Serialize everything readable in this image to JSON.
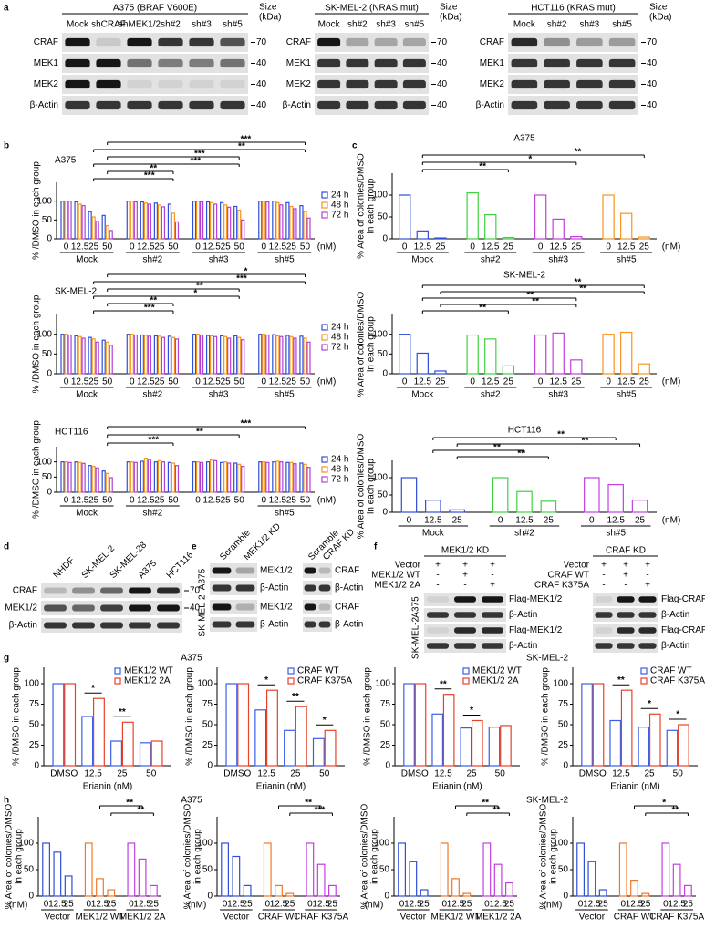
{
  "panel_labels": [
    "a",
    "b",
    "c",
    "d",
    "e",
    "f",
    "g",
    "h"
  ],
  "blots": {
    "size_label": [
      "Size",
      "(kDa)"
    ],
    "a": [
      {
        "title": "A375 (BRAF V600E)",
        "lanes": [
          "Mock",
          "shCRAF",
          "shMEK1/2",
          "sh#2",
          "sh#3",
          "sh#5"
        ],
        "rows": [
          "CRAF",
          "MEK1",
          "MEK2",
          "β-Actin"
        ],
        "sizes": [
          "70",
          "40",
          "40",
          "40"
        ]
      },
      {
        "title": "SK-MEL-2 (NRAS mut)",
        "lanes": [
          "Mock",
          "sh#2",
          "sh#3",
          "sh#5"
        ],
        "rows": [
          "CRAF",
          "MEK1",
          "MEK2",
          "β-Actin"
        ],
        "sizes": [
          "70",
          "40",
          "40",
          "40"
        ]
      },
      {
        "title": "HCT116 (KRAS mut)",
        "lanes": [
          "Mock",
          "sh#2",
          "sh#3",
          "sh#5"
        ],
        "rows": [
          "CRAF",
          "MEK1",
          "MEK2",
          "β-Actin"
        ],
        "sizes": [
          "70",
          "40",
          "40",
          "40"
        ]
      }
    ],
    "d": {
      "lanes": [
        "NHDF",
        "SK-MEL-2",
        "SK-MEL-28",
        "A375",
        "HCT116"
      ],
      "rows": [
        "CRAF",
        "MEK1/2",
        "β-Actin"
      ],
      "sizes": [
        "70",
        "40"
      ]
    },
    "e": {
      "cell_lines": [
        "A375",
        "SK-MEL-2"
      ],
      "blots": [
        {
          "lanes": [
            "Scramble",
            "MEK1/2 KD"
          ],
          "rows": [
            "MEK1/2",
            "β-Actin",
            "MEK1/2",
            "β-Actin"
          ]
        },
        {
          "lanes": [
            "Scramble",
            "CRAF KD"
          ],
          "rows": [
            "CRAF",
            "β-Actin",
            "CRAF",
            "β-Actin"
          ]
        }
      ]
    },
    "f": {
      "cell_lines": [
        "A375",
        "SK-MEL-2"
      ],
      "blots": [
        {
          "title": "MEK1/2 KD",
          "conditions": [
            [
              "Vector",
              "+",
              "+",
              "+"
            ],
            [
              "MEK1/2 WT",
              "-",
              "+",
              "-"
            ],
            [
              "MEK1/2 2A",
              "-",
              "-",
              "+"
            ]
          ],
          "rows": [
            "Flag-MEK1/2",
            "β-Actin",
            "Flag-MEK1/2",
            "β-Actin"
          ]
        },
        {
          "title": "CRAF KD",
          "conditions": [
            [
              "Vector",
              "+",
              "+",
              "+"
            ],
            [
              "CRAF WT",
              "-",
              "+",
              "-"
            ],
            [
              "CRAF K375A",
              "-",
              "-",
              "+"
            ]
          ],
          "rows": [
            "Flag-CRAF",
            "β-Actin",
            "Flag-CRAF",
            "β-Actin"
          ]
        }
      ]
    }
  },
  "chart_data": [
    {
      "type": "bar",
      "title": "A375",
      "ylabel": [
        "% /DMSO in each group"
      ],
      "ylim": [
        0,
        150
      ],
      "yticks": [
        0,
        50,
        100
      ],
      "legend": "right",
      "categories": [
        "0",
        "12.5",
        "25",
        "50",
        "0",
        "12.5",
        "25",
        "50",
        "0",
        "12.5",
        "25",
        "50",
        "0",
        "12.5",
        "25",
        "50"
      ],
      "groups": [
        "Mock",
        "sh#2",
        "sh#3",
        "sh#5"
      ],
      "unit_label": "(nM)",
      "series": [
        {
          "name": "24 h",
          "color": "#2f4fd8",
          "values": [
            100,
            98,
            72,
            62,
            100,
            98,
            95,
            92,
            100,
            98,
            96,
            86,
            100,
            100,
            96,
            88
          ]
        },
        {
          "name": "48 h",
          "color": "#f7941d",
          "values": [
            100,
            92,
            58,
            35,
            100,
            95,
            90,
            68,
            100,
            96,
            90,
            76,
            100,
            96,
            86,
            72
          ]
        },
        {
          "name": "72 h",
          "color": "#b43fd6",
          "values": [
            100,
            88,
            46,
            22,
            98,
            92,
            85,
            45,
            98,
            92,
            84,
            50,
            98,
            90,
            80,
            55
          ]
        }
      ],
      "significance": [
        "***",
        "**",
        "***",
        "***",
        "**",
        "***"
      ]
    },
    {
      "type": "bar",
      "title": "SK-MEL-2",
      "ylabel": [
        "% /DMSO in each group"
      ],
      "ylim": [
        0,
        150
      ],
      "yticks": [
        0,
        50,
        100
      ],
      "legend": "right",
      "categories": [
        "0",
        "12.5",
        "25",
        "50",
        "0",
        "12.5",
        "25",
        "50",
        "0",
        "12.5",
        "25",
        "50",
        "0",
        "12.5",
        "25",
        "50"
      ],
      "groups": [
        "Mock",
        "sh#2",
        "sh#3",
        "sh#5"
      ],
      "unit_label": "(nM)",
      "series": [
        {
          "name": "24 h",
          "color": "#2f4fd8",
          "values": [
            100,
            96,
            92,
            85,
            100,
            98,
            96,
            95,
            100,
            97,
            96,
            96,
            100,
            99,
            97,
            95
          ]
        },
        {
          "name": "48 h",
          "color": "#f7941d",
          "values": [
            100,
            94,
            88,
            80,
            100,
            97,
            95,
            92,
            100,
            96,
            94,
            92,
            100,
            96,
            94,
            90
          ]
        },
        {
          "name": "72 h",
          "color": "#b43fd6",
          "values": [
            98,
            90,
            80,
            72,
            98,
            95,
            92,
            88,
            98,
            94,
            90,
            86,
            98,
            94,
            90,
            80
          ]
        }
      ],
      "significance": [
        "*",
        "***",
        "**",
        "*",
        "**",
        "***"
      ]
    },
    {
      "type": "bar",
      "title": "HCT116",
      "ylabel": [
        "% /DMSO in each group"
      ],
      "ylim": [
        0,
        150
      ],
      "yticks": [
        0,
        50,
        100
      ],
      "legend": "right",
      "categories": [
        "0",
        "12.5",
        "25",
        "50",
        "0",
        "12.5",
        "25",
        "50",
        "0",
        "12.5",
        "25",
        "50",
        "0",
        "12.5",
        "25",
        "50"
      ],
      "groups": [
        "Mock",
        "sh#2",
        null,
        "sh#5"
      ],
      "unit_label": "(nM)",
      "series": [
        {
          "name": "24 h",
          "color": "#2f4fd8",
          "values": [
            100,
            100,
            88,
            70,
            100,
            102,
            100,
            98,
            100,
            100,
            98,
            96,
            100,
            100,
            98,
            96
          ]
        },
        {
          "name": "48 h",
          "color": "#f7941d",
          "values": [
            100,
            98,
            85,
            62,
            100,
            112,
            104,
            96,
            100,
            106,
            100,
            92,
            100,
            102,
            98,
            92
          ]
        },
        {
          "name": "72 h",
          "color": "#b43fd6",
          "values": [
            98,
            95,
            80,
            48,
            98,
            108,
            100,
            88,
            98,
            104,
            96,
            85,
            98,
            100,
            94,
            82
          ]
        }
      ],
      "significance": [
        "***",
        "**",
        "***"
      ]
    },
    {
      "type": "bar",
      "title": "A375",
      "ylabel": [
        "% Area of colonies/DMSO",
        "in each group"
      ],
      "ylim": [
        0,
        150
      ],
      "yticks": [
        0,
        50,
        100
      ],
      "categories": [
        "0",
        "12.5",
        "25",
        "0",
        "12.5",
        "25",
        "0",
        "12.5",
        "25",
        "0",
        "12.5",
        "25"
      ],
      "groups": [
        "Mock",
        "sh#2",
        "sh#3",
        "sh#5"
      ],
      "unit_label": "(nM)",
      "group_colors": [
        "#2f4fd8",
        "#3fd13f",
        "#c23fe0",
        "#f7941d"
      ],
      "values": [
        100,
        18,
        2,
        105,
        55,
        3,
        100,
        45,
        5,
        100,
        58,
        4
      ],
      "significance": [
        "**",
        "*",
        "**"
      ]
    },
    {
      "type": "bar",
      "title": "SK-MEL-2",
      "ylabel": [
        "% Area of colonies/DMSO",
        "in each group"
      ],
      "ylim": [
        0,
        150
      ],
      "yticks": [
        0,
        50,
        100
      ],
      "categories": [
        "0",
        "12.5",
        "25",
        "0",
        "12.5",
        "25",
        "0",
        "12.5",
        "25",
        "0",
        "12.5",
        "25"
      ],
      "groups": [
        "Mock",
        "sh#2",
        "sh#3",
        "sh#5"
      ],
      "unit_label": "(nM)",
      "group_colors": [
        "#2f4fd8",
        "#3fd13f",
        "#c23fe0",
        "#f7941d"
      ],
      "values": [
        100,
        52,
        7,
        98,
        88,
        20,
        98,
        103,
        35,
        100,
        105,
        25
      ],
      "significance": [
        "**",
        "**",
        "**",
        "**",
        "**"
      ]
    },
    {
      "type": "bar",
      "title": "HCT116",
      "ylabel": [
        "% Area of colonies/DMSO",
        "in each group"
      ],
      "ylim": [
        0,
        150
      ],
      "yticks": [
        0,
        50,
        100
      ],
      "categories": [
        "0",
        "12.5",
        "25",
        "0",
        "12.5",
        "25",
        "0",
        "12.5",
        "25"
      ],
      "groups": [
        "Mock",
        "sh#2",
        "sh#5"
      ],
      "unit_label": "(nM)",
      "group_colors": [
        "#2f4fd8",
        "#3fd13f",
        "#c23fe0"
      ],
      "values": [
        100,
        35,
        7,
        100,
        60,
        32,
        100,
        80,
        35
      ],
      "significance": [
        "**",
        "**",
        "**",
        "**"
      ]
    },
    {
      "type": "bar",
      "title": "A375",
      "ylabel": [
        "% /DMSO in each group"
      ],
      "xlabel": "Erianin (nM)",
      "ylim": [
        0,
        120
      ],
      "yticks": [
        0,
        25,
        50,
        75,
        100
      ],
      "legend": "upper right",
      "categories": [
        "DMSO",
        "12.5",
        "25",
        "50"
      ],
      "series": [
        {
          "name": "MEK1/2 WT",
          "color": "#3a5ee8",
          "values": [
            100,
            60,
            30,
            28
          ]
        },
        {
          "name": "MEK1/2 2A",
          "color": "#e8412a",
          "values": [
            100,
            82,
            53,
            30
          ]
        }
      ],
      "significance": [
        "*",
        "**"
      ]
    },
    {
      "type": "bar",
      "ylabel": [
        "% /DMSO in each group"
      ],
      "xlabel": "Erianin (nM)",
      "ylim": [
        0,
        120
      ],
      "yticks": [
        0,
        25,
        50,
        75,
        100
      ],
      "legend": "upper right",
      "categories": [
        "DMSO",
        "12.5",
        "25",
        "50"
      ],
      "series": [
        {
          "name": "CRAF WT",
          "color": "#3a5ee8",
          "values": [
            100,
            68,
            43,
            33
          ]
        },
        {
          "name": "CRAF K375A",
          "color": "#e8412a",
          "values": [
            100,
            92,
            72,
            43
          ]
        }
      ],
      "significance": [
        "*",
        "**",
        "*"
      ]
    },
    {
      "type": "bar",
      "title": "SK-MEL-2",
      "ylabel": [
        "% /DMSO in each group"
      ],
      "xlabel": "Erianin (nM)",
      "ylim": [
        0,
        120
      ],
      "yticks": [
        0,
        25,
        50,
        75,
        100
      ],
      "legend": "upper right",
      "categories": [
        "DMSO",
        "12.5",
        "25",
        "50"
      ],
      "series": [
        {
          "name": "MEK1/2 WT",
          "color": "#3a5ee8",
          "values": [
            100,
            63,
            46,
            47
          ]
        },
        {
          "name": "MEK1/2 2A",
          "color": "#e8412a",
          "values": [
            100,
            87,
            55,
            49
          ]
        }
      ],
      "significance": [
        "**",
        "*"
      ]
    },
    {
      "type": "bar",
      "ylabel": [
        "% /DMSO in each group"
      ],
      "xlabel": "Erianin (nM)",
      "ylim": [
        0,
        120
      ],
      "yticks": [
        0,
        25,
        50,
        75,
        100
      ],
      "legend": "upper right",
      "categories": [
        "DMSO",
        "12.5",
        "25",
        "50"
      ],
      "series": [
        {
          "name": "CRAF WT",
          "color": "#3a5ee8",
          "values": [
            100,
            55,
            47,
            43
          ]
        },
        {
          "name": "CRAF K375A",
          "color": "#e8412a",
          "values": [
            100,
            92,
            63,
            50
          ]
        }
      ],
      "significance": [
        "**",
        "*",
        "*"
      ]
    },
    {
      "type": "bar",
      "title": "A375",
      "ylabel": [
        "% Area of colonies/DMSO",
        "in each group"
      ],
      "ylim": [
        0,
        150
      ],
      "yticks": [
        0,
        50,
        100
      ],
      "categories": [
        "0",
        "12.5",
        "25",
        "0",
        "12.5",
        "25",
        "0",
        "12.5",
        "25"
      ],
      "groups": [
        "Vector",
        "MEK1/2 WT",
        "MEK1/2 2A"
      ],
      "unit_label": "(nM)",
      "group_colors": [
        "#2f4fd8",
        "#f0782a",
        "#c23fe0"
      ],
      "values": [
        100,
        83,
        38,
        100,
        33,
        12,
        100,
        70,
        20
      ],
      "significance": [
        "**",
        "**"
      ]
    },
    {
      "type": "bar",
      "ylabel": [
        "% Area of colonies/DMSO",
        "in each group"
      ],
      "ylim": [
        0,
        150
      ],
      "yticks": [
        0,
        50,
        100
      ],
      "categories": [
        "0",
        "12.5",
        "25",
        "0",
        "12.5",
        "25",
        "0",
        "12.5",
        "25"
      ],
      "groups": [
        "Vector",
        "CRAF WT",
        "CRAF K375A"
      ],
      "unit_label": "(nM)",
      "group_colors": [
        "#2f4fd8",
        "#f0782a",
        "#c23fe0"
      ],
      "values": [
        100,
        75,
        20,
        100,
        20,
        5,
        100,
        60,
        20
      ],
      "significance": [
        "**",
        "***"
      ]
    },
    {
      "type": "bar",
      "title": "SK-MEL-2",
      "ylabel": [
        "% Area of colonies/DMSO",
        "in each group"
      ],
      "ylim": [
        0,
        150
      ],
      "yticks": [
        0,
        50,
        100
      ],
      "categories": [
        "0",
        "12.5",
        "25",
        "0",
        "12.5",
        "25",
        "0",
        "12.5",
        "25"
      ],
      "groups": [
        "Vector",
        "MEK1/2 WT",
        "MEK1/2 2A"
      ],
      "unit_label": "(nM)",
      "group_colors": [
        "#2f4fd8",
        "#f0782a",
        "#c23fe0"
      ],
      "values": [
        100,
        65,
        12,
        100,
        33,
        5,
        100,
        60,
        25
      ],
      "significance": [
        "**",
        "**"
      ]
    },
    {
      "type": "bar",
      "ylabel": [
        "% Area of colonies/DMSO",
        "in each group"
      ],
      "ylim": [
        0,
        150
      ],
      "yticks": [
        0,
        50,
        100
      ],
      "categories": [
        "0",
        "12.5",
        "25",
        "0",
        "12.5",
        "25",
        "0",
        "12.5",
        "25"
      ],
      "groups": [
        "Vector",
        "CRAF WT",
        "CRAF K375A"
      ],
      "unit_label": "(nM)",
      "group_colors": [
        "#2f4fd8",
        "#f0782a",
        "#c23fe0"
      ],
      "values": [
        100,
        65,
        12,
        100,
        30,
        5,
        100,
        60,
        20
      ],
      "significance": [
        "*",
        "**"
      ]
    }
  ]
}
